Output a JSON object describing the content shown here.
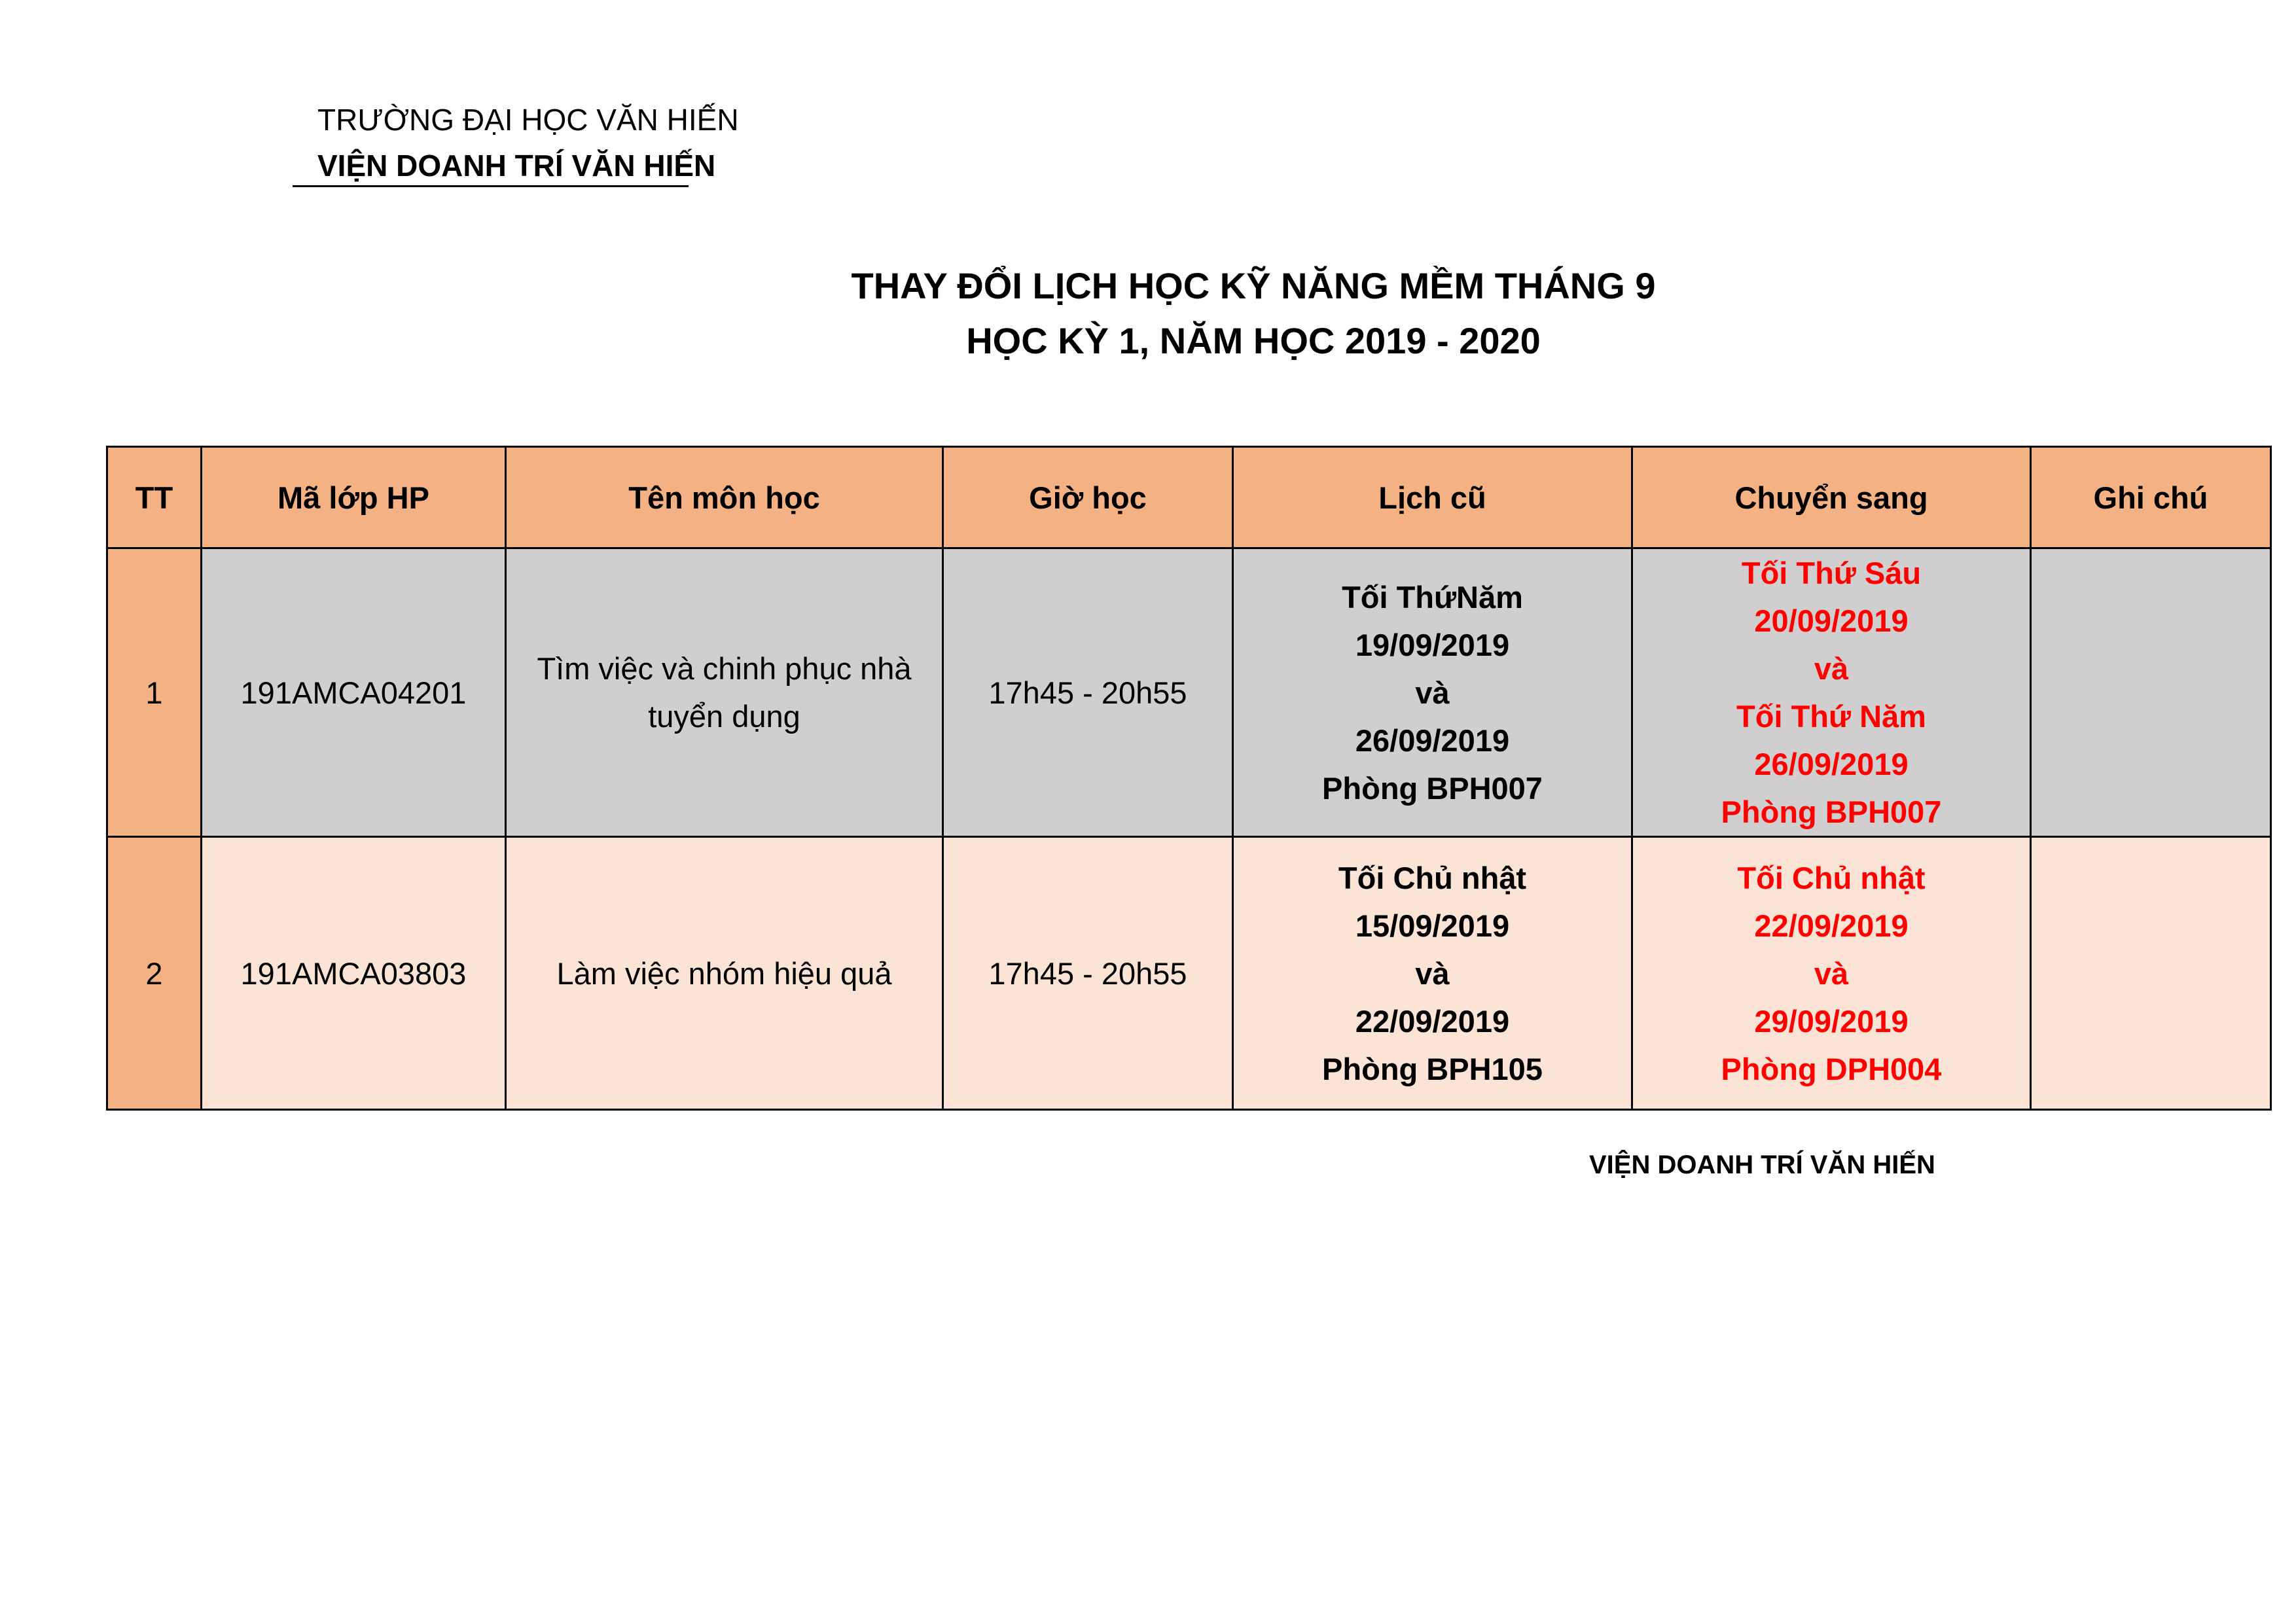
{
  "header": {
    "university": "TRƯỜNG ĐẠI HỌC VĂN HIẾN",
    "institute": "VIỆN DOANH TRÍ VĂN HIẾN"
  },
  "title": {
    "line1": "THAY ĐỔI LỊCH HỌC KỸ NĂNG MỀM THÁNG 9",
    "line2": "HỌC KỲ 1, NĂM HỌC 2019 - 2020"
  },
  "table": {
    "columns": [
      "TT",
      "Mã lớp  HP",
      "Tên môn học",
      "Giờ học",
      "Lịch cũ",
      "Chuyển sang",
      "Ghi chú"
    ],
    "rows": [
      {
        "tt": "1",
        "class_code": "191AMCA04201",
        "subject": "Tìm việc và chinh phục nhà tuyển dụng",
        "time": "17h45 - 20h55",
        "old_schedule": [
          "Tối ThứNăm",
          "19/09/2019",
          "và",
          "26/09/2019",
          "Phòng BPH007"
        ],
        "new_schedule": [
          "Tối Thứ Sáu",
          "20/09/2019",
          "và",
          "Tối Thứ Năm",
          "26/09/2019",
          "Phòng BPH007"
        ],
        "note": ""
      },
      {
        "tt": "2",
        "class_code": "191AMCA03803",
        "subject": "Làm việc nhóm hiệu quả",
        "time": "17h45 - 20h55",
        "old_schedule": [
          "Tối Chủ nhật",
          "15/09/2019",
          "và",
          "22/09/2019",
          "Phòng BPH105"
        ],
        "new_schedule": [
          "Tối Chủ nhật",
          "22/09/2019",
          "và",
          "29/09/2019",
          "Phòng DPH004"
        ],
        "note": ""
      }
    ]
  },
  "footer": {
    "signature": "VIỆN DOANH TRÍ VĂN HIẾN"
  },
  "colors": {
    "header_bg": "#f4b183",
    "row1_bg": "#d0cecf",
    "row2_bg": "#fbe3d6",
    "changed_text": "#ff0000"
  }
}
